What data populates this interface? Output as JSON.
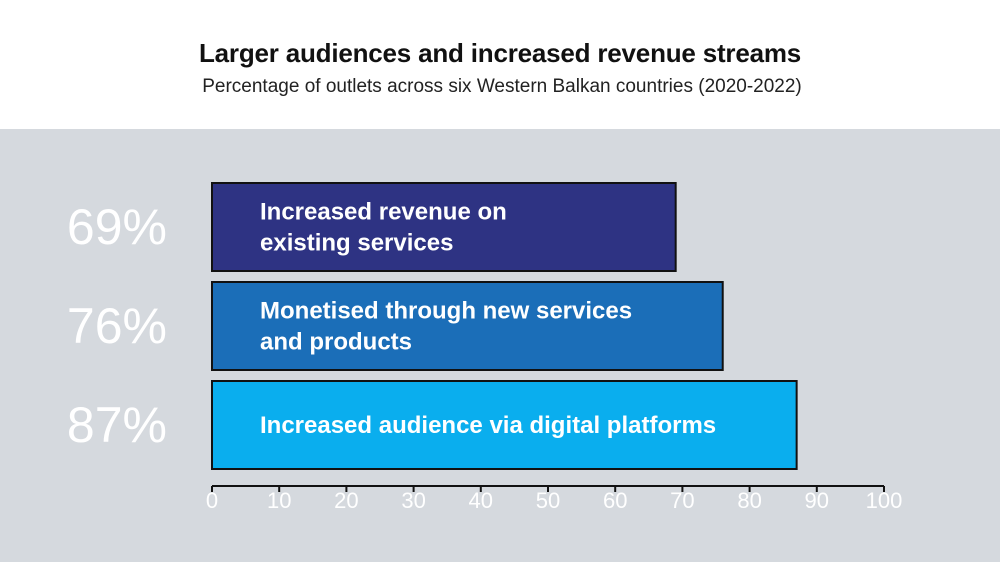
{
  "chart_data": {
    "type": "bar",
    "orientation": "horizontal",
    "title": "Larger audiences and increased revenue streams",
    "subtitle": "Percentage of outlets across six Western Balkan countries (2020-2022)",
    "xlim": [
      0,
      100
    ],
    "xticks": [
      "0",
      "10",
      "20",
      "30",
      "40",
      "50",
      "60",
      "70",
      "80",
      "90",
      "100"
    ],
    "bars": [
      {
        "label_lines": [
          "Increased revenue on",
          "existing services"
        ],
        "value": 69,
        "value_label": "69%",
        "color": "#2e3383"
      },
      {
        "label_lines": [
          "Monetised through new services",
          "and products"
        ],
        "value": 76,
        "value_label": "76%",
        "color": "#1b6eb8"
      },
      {
        "label_lines": [
          "Increased audience via digital platforms"
        ],
        "value": 87,
        "value_label": "87%",
        "color": "#0aaeee"
      }
    ],
    "grid": false,
    "legend": "none"
  }
}
